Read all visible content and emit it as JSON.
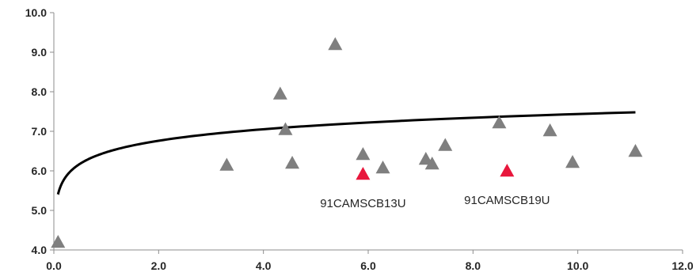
{
  "chart_data": {
    "type": "scatter",
    "title": "",
    "xlabel": "",
    "ylabel": "",
    "xlim": [
      0,
      12
    ],
    "ylim": [
      4,
      10
    ],
    "grid": false,
    "x_ticks": [
      "0.0",
      "2.0",
      "4.0",
      "6.0",
      "8.0",
      "10.0",
      "12.0"
    ],
    "y_ticks": [
      "4.0",
      "5.0",
      "6.0",
      "7.0",
      "8.0",
      "9.0",
      "10.0"
    ],
    "series": [
      {
        "marker": "triangle",
        "color": "#7f7f7f",
        "points": [
          {
            "x": 0.08,
            "y": 4.2
          },
          {
            "x": 3.3,
            "y": 6.15
          },
          {
            "x": 4.32,
            "y": 7.95
          },
          {
            "x": 4.42,
            "y": 7.05
          },
          {
            "x": 4.55,
            "y": 6.2
          },
          {
            "x": 5.37,
            "y": 9.2
          },
          {
            "x": 5.9,
            "y": 6.42
          },
          {
            "x": 6.28,
            "y": 6.08
          },
          {
            "x": 7.1,
            "y": 6.3
          },
          {
            "x": 7.22,
            "y": 6.18
          },
          {
            "x": 7.47,
            "y": 6.65
          },
          {
            "x": 8.5,
            "y": 7.22
          },
          {
            "x": 9.47,
            "y": 7.02
          },
          {
            "x": 9.9,
            "y": 6.22
          },
          {
            "x": 11.1,
            "y": 6.5
          }
        ]
      },
      {
        "marker": "triangle",
        "color": "#e8173c",
        "points": [
          {
            "x": 5.9,
            "y": 5.92,
            "label": "91CAMSCB13U"
          },
          {
            "x": 8.65,
            "y": 6.0,
            "label": "91CAMSCB19U"
          }
        ]
      }
    ],
    "trendline": {
      "type": "logarithmic",
      "color": "#000000",
      "a": 6.47,
      "b": 0.42,
      "x_range": [
        0.08,
        11.1
      ]
    }
  }
}
